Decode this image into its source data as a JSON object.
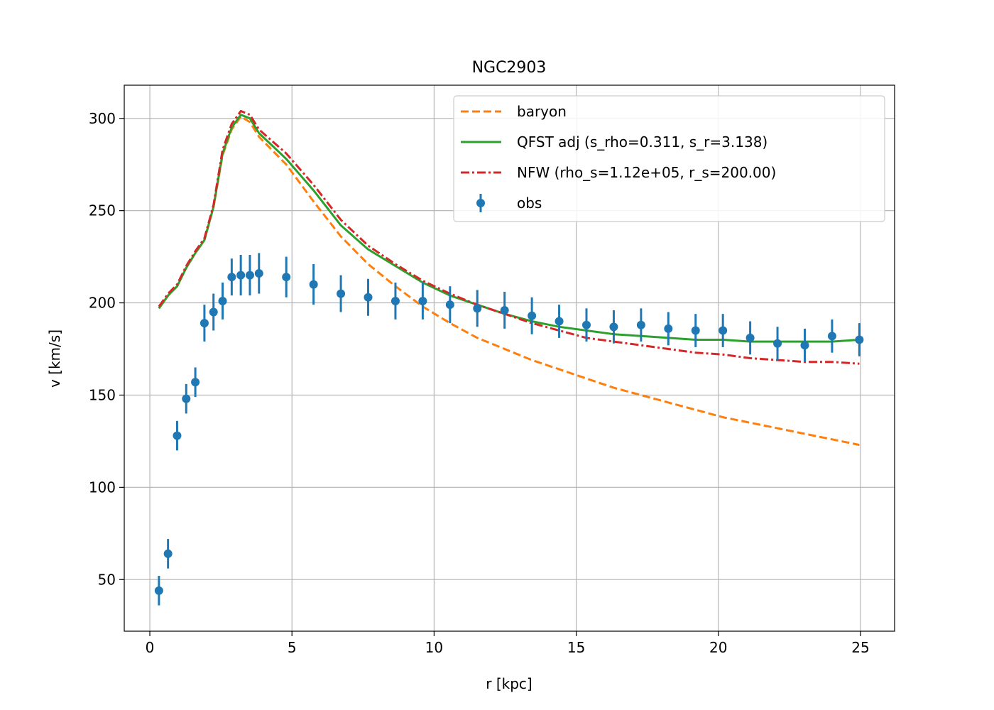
{
  "chart_data": {
    "type": "line",
    "title": "NGC2903",
    "xlabel": "r [kpc]",
    "ylabel": "v [km/s]",
    "xlim": [
      -0.9,
      26.2
    ],
    "ylim": [
      22,
      318
    ],
    "xticks": [
      0,
      5,
      10,
      15,
      20,
      25
    ],
    "yticks": [
      50,
      100,
      150,
      200,
      250,
      300
    ],
    "grid": true,
    "legend_position": "top-right",
    "series": [
      {
        "name": "baryon",
        "kind": "line",
        "style": "dashed",
        "color": "#ff7f0e",
        "x": [
          0.32,
          0.64,
          0.96,
          1.28,
          1.6,
          1.92,
          2.24,
          2.56,
          2.88,
          3.2,
          3.52,
          3.84,
          4.8,
          5.76,
          6.72,
          7.68,
          8.64,
          9.6,
          10.56,
          11.52,
          12.48,
          13.44,
          14.4,
          15.36,
          16.32,
          17.28,
          18.24,
          19.2,
          20.16,
          21.12,
          22.08,
          23.04,
          24.0,
          24.96
        ],
        "y": [
          197,
          204,
          209,
          219,
          227,
          234,
          252,
          280,
          294,
          301,
          298,
          290,
          275,
          255,
          236,
          221,
          209,
          198,
          189,
          181,
          175,
          169,
          164,
          159,
          154,
          150,
          146,
          142,
          138,
          135,
          132,
          129,
          126,
          123
        ]
      },
      {
        "name": "QFST adj (s_rho=0.311, s_r=3.138)",
        "kind": "line",
        "style": "solid",
        "color": "#2ca02c",
        "x": [
          0.32,
          0.64,
          0.96,
          1.28,
          1.6,
          1.92,
          2.24,
          2.56,
          2.88,
          3.2,
          3.52,
          3.84,
          4.8,
          5.76,
          6.72,
          7.68,
          8.64,
          9.6,
          10.56,
          11.52,
          12.48,
          13.44,
          14.4,
          15.36,
          16.32,
          17.28,
          18.24,
          19.2,
          20.16,
          21.12,
          22.08,
          23.04,
          24.0,
          24.96
        ],
        "y": [
          197,
          204,
          209,
          219,
          227,
          234,
          252,
          281,
          295,
          302,
          300,
          292,
          278,
          261,
          242,
          229,
          220,
          211,
          204,
          199,
          194,
          190,
          187,
          185,
          183,
          182,
          181,
          180,
          180,
          179,
          179,
          179,
          179,
          180
        ]
      },
      {
        "name": "NFW (rho_s=1.12e+05, r_s=200.00)",
        "kind": "line",
        "style": "dashdot",
        "color": "#d62728",
        "x": [
          0.32,
          0.64,
          0.96,
          1.28,
          1.6,
          1.92,
          2.24,
          2.56,
          2.88,
          3.2,
          3.52,
          3.84,
          4.8,
          5.76,
          6.72,
          7.68,
          8.64,
          9.6,
          10.56,
          11.52,
          12.48,
          13.44,
          14.4,
          15.36,
          16.32,
          17.28,
          18.24,
          19.2,
          20.16,
          21.12,
          22.08,
          23.04,
          24.0,
          24.96
        ],
        "y": [
          198,
          205,
          210,
          220,
          228,
          235,
          253,
          283,
          297,
          304,
          302,
          294,
          281,
          264,
          245,
          231,
          221,
          212,
          205,
          199,
          194,
          189,
          185,
          181,
          179,
          177,
          175,
          173,
          172,
          170,
          169,
          168,
          168,
          167
        ]
      },
      {
        "name": "obs",
        "kind": "errorbar",
        "color": "#1f77b4",
        "x": [
          0.32,
          0.64,
          0.96,
          1.28,
          1.6,
          1.92,
          2.24,
          2.56,
          2.88,
          3.2,
          3.52,
          3.84,
          4.8,
          5.76,
          6.72,
          7.68,
          8.64,
          9.6,
          10.56,
          11.52,
          12.48,
          13.44,
          14.4,
          15.36,
          16.32,
          17.28,
          18.24,
          19.2,
          20.16,
          21.12,
          22.08,
          23.04,
          24.0,
          24.96
        ],
        "y": [
          44,
          64,
          128,
          148,
          157,
          189,
          195,
          201,
          214,
          215,
          215,
          216,
          214,
          210,
          205,
          203,
          201,
          201,
          199,
          197,
          196,
          193,
          190,
          188,
          187,
          188,
          186,
          185,
          185,
          181,
          178,
          177,
          182,
          180
        ],
        "err": [
          8,
          8,
          8,
          8,
          8,
          10,
          10,
          10,
          10,
          11,
          11,
          11,
          11,
          11,
          10,
          10,
          10,
          10,
          10,
          10,
          10,
          10,
          9,
          9,
          9,
          9,
          9,
          9,
          9,
          9,
          9,
          9,
          9,
          9
        ]
      }
    ]
  }
}
